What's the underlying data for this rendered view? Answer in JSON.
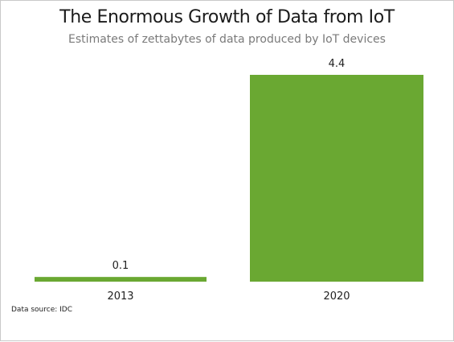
{
  "chart_data": {
    "type": "bar",
    "title": "The Enormous Growth of Data from IoT",
    "subtitle": "Estimates of zettabytes of data produced by IoT devices",
    "categories": [
      "2013",
      "2020"
    ],
    "values": [
      0.1,
      4.4
    ],
    "value_labels": [
      "0.1",
      "4.4"
    ],
    "xlabel": "",
    "ylabel": "",
    "ylim": [
      0,
      4.4
    ],
    "grid": false,
    "legend": "none",
    "bar_color": "#6aa832",
    "source": "Data source: IDC"
  }
}
